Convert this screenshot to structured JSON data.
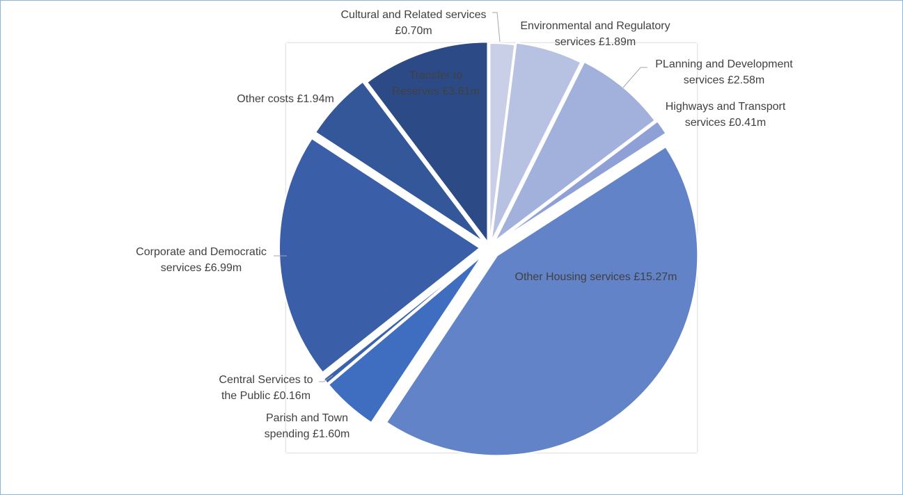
{
  "chart_data": {
    "type": "pie",
    "title": "",
    "start_angle_deg": 0,
    "direction": "clockwise",
    "slices": [
      {
        "name": "Cultural and Related  services",
        "value": 0.7,
        "display": "£0.70m",
        "color": "#c9cfe6",
        "label_lines": [
          "Cultural and Related  services",
          "£0.70m"
        ],
        "label_side": "outside-right-anchor"
      },
      {
        "name": "Environmental and Regulatory services",
        "value": 1.89,
        "display": "£1.89m",
        "color": "#b7c2e2",
        "label_lines": [
          "Environmental and Regulatory",
          "services £1.89m"
        ]
      },
      {
        "name": "PLanning and Development services",
        "value": 2.58,
        "display": "£2.58m",
        "color": "#a2b0dc",
        "label_lines": [
          "PLanning and Development",
          "services £2.58m"
        ]
      },
      {
        "name": "Highways and Transport services",
        "value": 0.41,
        "display": "£0.41m",
        "color": "#8ea0d6",
        "label_lines": [
          "Highways and Transport",
          "services £0.41m"
        ]
      },
      {
        "name": "Other Housing services",
        "value": 15.27,
        "display": "£15.27m",
        "color": "#6383c8",
        "label_lines": [
          "Other Housing services £15.27m"
        ]
      },
      {
        "name": "Parish and Town spending",
        "value": 1.6,
        "display": "£1.60m",
        "color": "#3f6dc0",
        "label_lines": [
          "Parish and Town",
          "spending £1.60m"
        ]
      },
      {
        "name": "Central Services to the Public",
        "value": 0.16,
        "display": "£0.16m",
        "color": "#3a62ad",
        "label_lines": [
          "Central Services to",
          "the Public £0.16m"
        ]
      },
      {
        "name": "Corporate and Democratic services",
        "value": 6.99,
        "display": "£6.99m",
        "color": "#3a5fa8",
        "label_lines": [
          "Corporate and Democratic",
          "services £6.99m"
        ]
      },
      {
        "name": "Other costs",
        "value": 1.94,
        "display": "£1.94m",
        "color": "#34579a",
        "label_lines": [
          "Other costs £1.94m"
        ]
      },
      {
        "name": "Transfer to Reserves",
        "value": 3.61,
        "display": "£3.61m",
        "color": "#2c4b86",
        "label_lines": [
          "Transfer to",
          "Reserves £3.61m"
        ]
      }
    ]
  }
}
